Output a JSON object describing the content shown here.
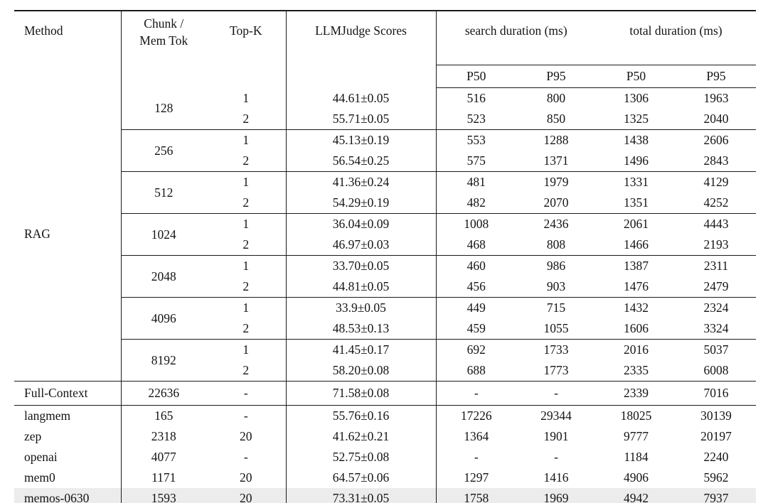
{
  "colors": {
    "highlight_bg": "#ececec",
    "rule": "#1b1b1b",
    "text": "#141414",
    "background": "#ffffff"
  },
  "header": {
    "method": "Method",
    "chunk_line1": "Chunk /",
    "chunk_line2": "Mem Tok",
    "topk": "Top-K",
    "score": "LLMJudge Scores",
    "search": "search duration (ms)",
    "total": "total duration (ms)",
    "p50": "P50",
    "p95": "P95"
  },
  "chart_data": {
    "type": "table",
    "title": "",
    "columns": [
      "Method",
      "Chunk / Mem Tok",
      "Top-K",
      "LLMJudge Scores",
      "search duration (ms) P50",
      "search duration (ms) P95",
      "total duration (ms) P50",
      "total duration (ms) P95"
    ]
  },
  "rag": {
    "method": "RAG",
    "groups": [
      {
        "chunk": "128",
        "rows": [
          [
            "1",
            "44.61±0.05",
            "516",
            "800",
            "1306",
            "1963"
          ],
          [
            "2",
            "55.71±0.05",
            "523",
            "850",
            "1325",
            "2040"
          ]
        ]
      },
      {
        "chunk": "256",
        "rows": [
          [
            "1",
            "45.13±0.19",
            "553",
            "1288",
            "1438",
            "2606"
          ],
          [
            "2",
            "56.54±0.25",
            "575",
            "1371",
            "1496",
            "2843"
          ]
        ]
      },
      {
        "chunk": "512",
        "rows": [
          [
            "1",
            "41.36±0.24",
            "481",
            "1979",
            "1331",
            "4129"
          ],
          [
            "2",
            "54.29±0.19",
            "482",
            "2070",
            "1351",
            "4252"
          ]
        ]
      },
      {
        "chunk": "1024",
        "rows": [
          [
            "1",
            "36.04±0.09",
            "1008",
            "2436",
            "2061",
            "4443"
          ],
          [
            "2",
            "46.97±0.03",
            "468",
            "808",
            "1466",
            "2193"
          ]
        ]
      },
      {
        "chunk": "2048",
        "rows": [
          [
            "1",
            "33.70±0.05",
            "460",
            "986",
            "1387",
            "2311"
          ],
          [
            "2",
            "44.81±0.05",
            "456",
            "903",
            "1476",
            "2479"
          ]
        ]
      },
      {
        "chunk": "4096",
        "rows": [
          [
            "1",
            "33.9±0.05",
            "449",
            "715",
            "1432",
            "2324"
          ],
          [
            "2",
            "48.53±0.13",
            "459",
            "1055",
            "1606",
            "3324"
          ]
        ]
      },
      {
        "chunk": "8192",
        "rows": [
          [
            "1",
            "41.45±0.17",
            "692",
            "1733",
            "2016",
            "5037"
          ],
          [
            "2",
            "58.20±0.08",
            "688",
            "1773",
            "2335",
            "6008"
          ]
        ]
      }
    ]
  },
  "full_context": [
    "Full-Context",
    "22636",
    "-",
    "71.58±0.08",
    "-",
    "-",
    "2339",
    "7016"
  ],
  "baselines": [
    {
      "cells": [
        "langmem",
        "165",
        "-",
        "55.76±0.16",
        "17226",
        "29344",
        "18025",
        "30139"
      ],
      "highlight": false
    },
    {
      "cells": [
        "zep",
        "2318",
        "20",
        "41.62±0.21",
        "1364",
        "1901",
        "9777",
        "20197"
      ],
      "highlight": false
    },
    {
      "cells": [
        "openai",
        "4077",
        "-",
        "52.75±0.08",
        "-",
        "-",
        "1184",
        "2240"
      ],
      "highlight": false
    },
    {
      "cells": [
        "mem0",
        "1171",
        "20",
        "64.57±0.06",
        "1297",
        "1416",
        "4906",
        "5962"
      ],
      "highlight": false
    },
    {
      "cells": [
        "memos-0630",
        "1593",
        "20",
        "73.31±0.05",
        "1758",
        "1969",
        "4942",
        "7937"
      ],
      "highlight": true
    }
  ]
}
